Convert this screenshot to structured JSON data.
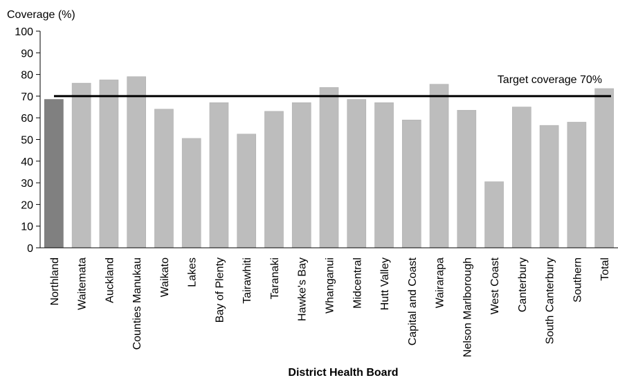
{
  "chart_data": {
    "type": "bar",
    "title": "",
    "ylabel": "Coverage  (%)",
    "xlabel": "District Health Board",
    "ylim": [
      0,
      100
    ],
    "yticks": [
      0,
      10,
      20,
      30,
      40,
      50,
      60,
      70,
      80,
      90,
      100
    ],
    "grid": false,
    "legend": "none",
    "categories": [
      "Northland",
      "Waitemata",
      "Auckland",
      "Counties Manukau",
      "Waikato",
      "Lakes",
      "Bay of Plenty",
      "Tairawhiti",
      "Taranaki",
      "Hawke's Bay",
      "Whanganui",
      "Midcentral",
      "Hutt Valley",
      "Capital and Coast",
      "Wairarapa",
      "Nelson Marlborough",
      "West Coast",
      "Canterbury",
      "South Canterbury",
      "Southern",
      "Total"
    ],
    "values": [
      68.5,
      76,
      77.5,
      79,
      64,
      50.5,
      67,
      52.5,
      63,
      67,
      74,
      68.5,
      67,
      59,
      75.5,
      63.5,
      30.5,
      65,
      56.5,
      58,
      73.5
    ],
    "highlight_category": "Northland",
    "colors": {
      "bar": "#bdbdbd",
      "highlight_bar": "#808080",
      "axis": "#000000",
      "target_line": "#000000"
    },
    "target": {
      "value": 70,
      "label": "Target coverage 70%"
    }
  }
}
